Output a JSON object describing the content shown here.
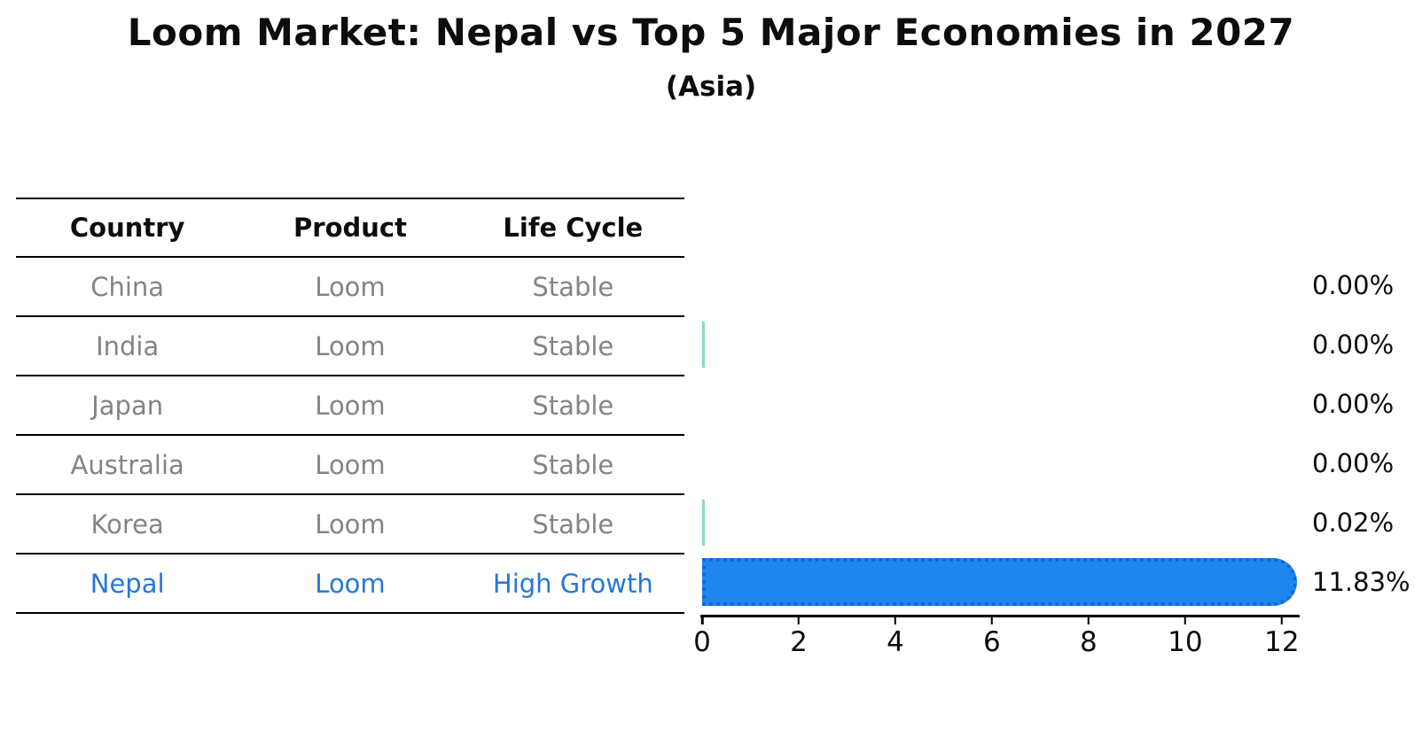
{
  "title": "Loom Market: Nepal vs Top 5 Major Economies in 2027",
  "subtitle": "(Asia)",
  "table": {
    "headers": [
      "Country",
      "Product",
      "Life Cycle"
    ],
    "rows": [
      {
        "country": "China",
        "product": "Loom",
        "life_cycle": "Stable",
        "highlight": false
      },
      {
        "country": "India",
        "product": "Loom",
        "life_cycle": "Stable",
        "highlight": false
      },
      {
        "country": "Japan",
        "product": "Loom",
        "life_cycle": "Stable",
        "highlight": false
      },
      {
        "country": "Australia",
        "product": "Loom",
        "life_cycle": "Stable",
        "highlight": false
      },
      {
        "country": "Korea",
        "product": "Loom",
        "life_cycle": "Stable",
        "highlight": false
      },
      {
        "country": "Nepal",
        "product": "Loom",
        "life_cycle": "High Growth",
        "highlight": true
      }
    ]
  },
  "chart_data": {
    "type": "bar",
    "orientation": "horizontal",
    "title": "Loom Market: Nepal vs Top 5 Major Economies in 2027",
    "subtitle": "(Asia)",
    "categories": [
      "China",
      "India",
      "Japan",
      "Australia",
      "Korea",
      "Nepal"
    ],
    "values": [
      0.0,
      0.0,
      0.0,
      0.0,
      0.02,
      11.83
    ],
    "value_labels": [
      "0.00%",
      "0.00%",
      "0.00%",
      "0.00%",
      "0.02%",
      "11.83%"
    ],
    "bar_render": [
      "none",
      "hairline",
      "none",
      "none",
      "hairline",
      "full"
    ],
    "highlight_index": 5,
    "xlabel": "",
    "ylabel": "",
    "xlim": [
      0,
      12.37
    ],
    "xticks": [
      0,
      2,
      4,
      6,
      8,
      10,
      12
    ],
    "grid": false,
    "legend": false
  },
  "colors": {
    "highlight_bar": "#1f86f0",
    "highlight_bar_edge": "#1565d0",
    "small_bar_teal": "#8ad5cb",
    "table_text_gray": "#848484",
    "highlight_text_blue": "#2577d8",
    "text_black": "#111111",
    "line_black": "#000000"
  }
}
